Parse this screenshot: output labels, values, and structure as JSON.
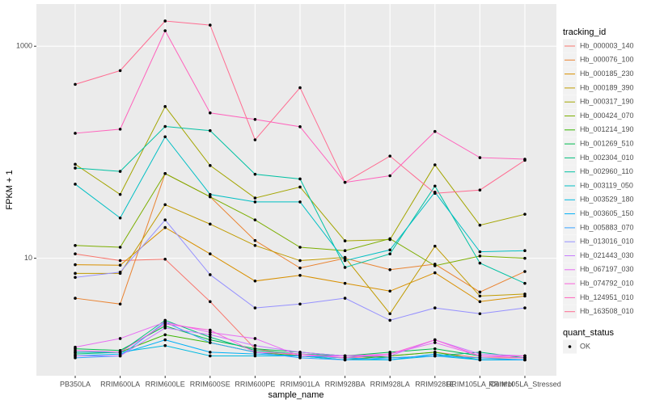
{
  "chart_data": {
    "type": "line",
    "x_label": "sample_name",
    "y_label": "FPKM + 1",
    "legend_title": "tracking_id",
    "log_y": true,
    "grid": true,
    "point_color": "#000000",
    "shape_legend": {
      "title": "quant_status",
      "levels": [
        "OK"
      ]
    },
    "categories": [
      "PB350LA",
      "RRIM600LA",
      "RRIM600LE",
      "RRIM600SE",
      "RRIM600PE",
      "RRIM901LA",
      "RRIM928BA",
      "RRIM928LA",
      "RRIM928LE",
      "RRIM105LA_Control",
      "RRIM105LA_Stressed"
    ],
    "ylim": [
      0.78,
      2500
    ],
    "yticks": [
      10,
      1000
    ],
    "series": [
      {
        "name": "Hb_000003_140",
        "color": "#F8766D",
        "values": [
          11,
          9.5,
          9.8,
          3.9,
          1.4,
          1.2,
          1.15,
          1.2,
          1.3,
          1.15,
          1.15
        ]
      },
      {
        "name": "Hb_000076_100",
        "color": "#EA8331",
        "values": [
          4.2,
          3.7,
          63,
          38,
          14.7,
          8.1,
          10,
          7.8,
          8.8,
          4.8,
          7.5
        ]
      },
      {
        "name": "Hb_000185_230",
        "color": "#D89000",
        "values": [
          8.7,
          8.6,
          19.5,
          11,
          6.1,
          6.9,
          5.8,
          4.9,
          7.3,
          3.9,
          4.4
        ]
      },
      {
        "name": "Hb_000189_390",
        "color": "#C09B00",
        "values": [
          7.2,
          7.2,
          32,
          21,
          13.2,
          9.5,
          10.2,
          3,
          13,
          4.4,
          4.6
        ]
      },
      {
        "name": "Hb_000317_190",
        "color": "#A3A500",
        "values": [
          77,
          40,
          270,
          75,
          37,
          47,
          14.6,
          15,
          76,
          20.5,
          26
        ]
      },
      {
        "name": "Hb_000424_070",
        "color": "#7CAE00",
        "values": [
          13.2,
          12.7,
          63,
          38,
          23,
          12.7,
          11.8,
          15.3,
          8.5,
          10.5,
          10
        ]
      },
      {
        "name": "Hb_001214_190",
        "color": "#39B600",
        "values": [
          1.3,
          1.3,
          1.9,
          1.6,
          1.3,
          1.2,
          1.1,
          1.2,
          1.3,
          1.1,
          1.1
        ]
      },
      {
        "name": "Hb_001269_510",
        "color": "#00BB4E",
        "values": [
          1.4,
          1.35,
          2.3,
          1.7,
          1.4,
          1.3,
          1.2,
          1.3,
          1.4,
          1.2,
          1.2
        ]
      },
      {
        "name": "Hb_002304_010",
        "color": "#00BF7D",
        "values": [
          1.25,
          1.3,
          2.6,
          1.8,
          1.35,
          1.25,
          1.2,
          1.15,
          1.2,
          1.3,
          1.15
        ]
      },
      {
        "name": "Hb_002960_110",
        "color": "#00C1A3",
        "values": [
          71,
          66,
          175,
          160,
          62,
          56,
          8.2,
          11,
          48,
          9,
          5.8
        ]
      },
      {
        "name": "Hb_003119_050",
        "color": "#00BFC4",
        "values": [
          50,
          24,
          140,
          40,
          34,
          34,
          9.5,
          12,
          42,
          11.5,
          11.8
        ]
      },
      {
        "name": "Hb_003529_180",
        "color": "#00BAE0",
        "values": [
          1.3,
          1.3,
          1.5,
          1.2,
          1.2,
          1.2,
          1.1,
          1.1,
          1.2,
          1.1,
          1.1
        ]
      },
      {
        "name": "Hb_003605_150",
        "color": "#00B0F6",
        "values": [
          1.2,
          1.25,
          1.7,
          1.3,
          1.25,
          1.2,
          1.15,
          1.1,
          1.25,
          1.1,
          1.1
        ]
      },
      {
        "name": "Hb_005883_070",
        "color": "#35A2FF",
        "values": [
          1.15,
          1.2,
          2.5,
          1.6,
          1.3,
          1.15,
          1.1,
          1.15,
          1.2,
          1.15,
          1.1
        ]
      },
      {
        "name": "Hb_013016_010",
        "color": "#9590FF",
        "values": [
          6.6,
          7.4,
          23,
          7,
          3.4,
          3.7,
          4.2,
          2.6,
          3.4,
          3,
          3.4
        ]
      },
      {
        "name": "Hb_021443_030",
        "color": "#C77CFF",
        "values": [
          1.2,
          1.2,
          2.2,
          1.9,
          1.5,
          1.3,
          1.2,
          1.2,
          1.7,
          1.25,
          1.2
        ]
      },
      {
        "name": "Hb_067197_030",
        "color": "#E76BF3",
        "values": [
          1.45,
          1.75,
          2.5,
          2,
          1.75,
          1.2,
          1.2,
          1.25,
          1.6,
          1.2,
          1.15
        ]
      },
      {
        "name": "Hb_074792_010",
        "color": "#FA62DB",
        "values": [
          1.35,
          1.3,
          2.4,
          2.1,
          1.3,
          1.25,
          1.15,
          1.25,
          1.7,
          1.2,
          1.2
        ]
      },
      {
        "name": "Hb_124951_010",
        "color": "#FF62BC",
        "values": [
          151,
          165,
          1400,
          235,
          204,
          174,
          52,
          60,
          157,
          89,
          86
        ]
      },
      {
        "name": "Hb_163508_010",
        "color": "#FF6C91",
        "values": [
          437,
          589,
          1730,
          1581,
          131,
          406,
          52,
          92,
          41,
          44,
          84
        ]
      }
    ]
  }
}
